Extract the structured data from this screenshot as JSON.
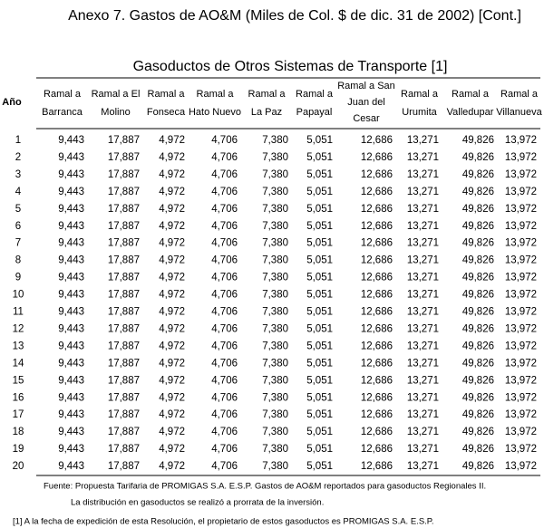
{
  "header": {
    "title": "Anexo 7. Gastos de AO&M (Miles de Col. $ de dic. 31 de 2002) [Cont.]",
    "subtitle": "Gasoductos de Otros Sistemas de Transporte [1]"
  },
  "table": {
    "year_header": "Año",
    "columns": [
      [
        "Ramal a",
        "Barranca"
      ],
      [
        "Ramal a El",
        "Molino"
      ],
      [
        "Ramal a",
        "Fonseca"
      ],
      [
        "Ramal a",
        "Hato Nuevo"
      ],
      [
        "Ramal a",
        "La Paz"
      ],
      [
        "Ramal a",
        "Papayal"
      ],
      [
        "Ramal a San",
        "Juan del",
        "Cesar"
      ],
      [
        "Ramal a",
        "Urumita"
      ],
      [
        "Ramal a",
        "Valledupar"
      ],
      [
        "Ramal a",
        "Villanueva"
      ]
    ],
    "rows": [
      [
        "1",
        "9,443",
        "17,887",
        "4,972",
        "4,706",
        "7,380",
        "5,051",
        "12,686",
        "13,271",
        "49,826",
        "13,972"
      ],
      [
        "2",
        "9,443",
        "17,887",
        "4,972",
        "4,706",
        "7,380",
        "5,051",
        "12,686",
        "13,271",
        "49,826",
        "13,972"
      ],
      [
        "3",
        "9,443",
        "17,887",
        "4,972",
        "4,706",
        "7,380",
        "5,051",
        "12,686",
        "13,271",
        "49,826",
        "13,972"
      ],
      [
        "4",
        "9,443",
        "17,887",
        "4,972",
        "4,706",
        "7,380",
        "5,051",
        "12,686",
        "13,271",
        "49,826",
        "13,972"
      ],
      [
        "5",
        "9,443",
        "17,887",
        "4,972",
        "4,706",
        "7,380",
        "5,051",
        "12,686",
        "13,271",
        "49,826",
        "13,972"
      ],
      [
        "6",
        "9,443",
        "17,887",
        "4,972",
        "4,706",
        "7,380",
        "5,051",
        "12,686",
        "13,271",
        "49,826",
        "13,972"
      ],
      [
        "7",
        "9,443",
        "17,887",
        "4,972",
        "4,706",
        "7,380",
        "5,051",
        "12,686",
        "13,271",
        "49,826",
        "13,972"
      ],
      [
        "8",
        "9,443",
        "17,887",
        "4,972",
        "4,706",
        "7,380",
        "5,051",
        "12,686",
        "13,271",
        "49,826",
        "13,972"
      ],
      [
        "9",
        "9,443",
        "17,887",
        "4,972",
        "4,706",
        "7,380",
        "5,051",
        "12,686",
        "13,271",
        "49,826",
        "13,972"
      ],
      [
        "10",
        "9,443",
        "17,887",
        "4,972",
        "4,706",
        "7,380",
        "5,051",
        "12,686",
        "13,271",
        "49,826",
        "13,972"
      ],
      [
        "11",
        "9,443",
        "17,887",
        "4,972",
        "4,706",
        "7,380",
        "5,051",
        "12,686",
        "13,271",
        "49,826",
        "13,972"
      ],
      [
        "12",
        "9,443",
        "17,887",
        "4,972",
        "4,706",
        "7,380",
        "5,051",
        "12,686",
        "13,271",
        "49,826",
        "13,972"
      ],
      [
        "13",
        "9,443",
        "17,887",
        "4,972",
        "4,706",
        "7,380",
        "5,051",
        "12,686",
        "13,271",
        "49,826",
        "13,972"
      ],
      [
        "14",
        "9,443",
        "17,887",
        "4,972",
        "4,706",
        "7,380",
        "5,051",
        "12,686",
        "13,271",
        "49,826",
        "13,972"
      ],
      [
        "15",
        "9,443",
        "17,887",
        "4,972",
        "4,706",
        "7,380",
        "5,051",
        "12,686",
        "13,271",
        "49,826",
        "13,972"
      ],
      [
        "16",
        "9,443",
        "17,887",
        "4,972",
        "4,706",
        "7,380",
        "5,051",
        "12,686",
        "13,271",
        "49,826",
        "13,972"
      ],
      [
        "17",
        "9,443",
        "17,887",
        "4,972",
        "4,706",
        "7,380",
        "5,051",
        "12,686",
        "13,271",
        "49,826",
        "13,972"
      ],
      [
        "18",
        "9,443",
        "17,887",
        "4,972",
        "4,706",
        "7,380",
        "5,051",
        "12,686",
        "13,271",
        "49,826",
        "13,972"
      ],
      [
        "19",
        "9,443",
        "17,887",
        "4,972",
        "4,706",
        "7,380",
        "5,051",
        "12,686",
        "13,271",
        "49,826",
        "13,972"
      ],
      [
        "20",
        "9,443",
        "17,887",
        "4,972",
        "4,706",
        "7,380",
        "5,051",
        "12,686",
        "13,271",
        "49,826",
        "13,972"
      ]
    ]
  },
  "footnotes": [
    "Fuente:  Propuesta Tarifaria de PROMIGAS S.A. E.S.P. Gastos de AO&M reportados para gasoductos Regionales II.",
    "La distribución en gasoductos se realizó a prorrata de la inversión.",
    "[1] A la fecha de expedición de esta Resolución, el propietario de estos gasoductos es PROMIGAS S.A. E.S.P."
  ]
}
